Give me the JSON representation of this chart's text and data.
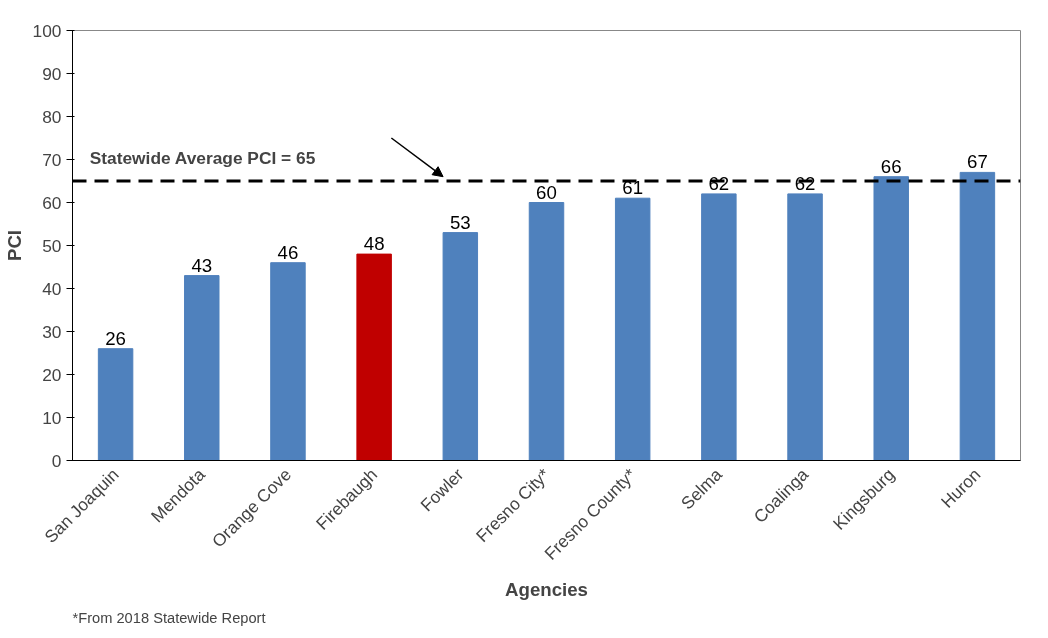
{
  "chart_data": {
    "type": "bar",
    "xlabel": "Agencies",
    "ylabel": "PCI",
    "categories": [
      "San Joaquin",
      "Mendota",
      "Orange Cove",
      "Firebaugh",
      "Fowler",
      "Fresno City*",
      "Fresno County*",
      "Selma",
      "Coalinga",
      "Kingsburg",
      "Huron"
    ],
    "values": [
      26,
      43,
      46,
      48,
      53,
      60,
      61,
      62,
      62,
      66,
      67
    ],
    "colors": [
      "#4f81bd",
      "#4f81bd",
      "#4f81bd",
      "#c00000",
      "#4f81bd",
      "#4f81bd",
      "#4f81bd",
      "#4f81bd",
      "#4f81bd",
      "#4f81bd",
      "#4f81bd"
    ],
    "ylim": [
      0,
      100
    ],
    "yticks": [
      0,
      10,
      20,
      30,
      40,
      50,
      60,
      70,
      80,
      90,
      100
    ],
    "data_labels": true,
    "grid": false,
    "ref_lines": [
      {
        "axis": "y",
        "value": 65,
        "label": "Statewide Average PCI = 65",
        "color": "#000000",
        "line_style": "dashed"
      }
    ],
    "annotations": [
      "*From 2018 Statewide Report"
    ]
  }
}
